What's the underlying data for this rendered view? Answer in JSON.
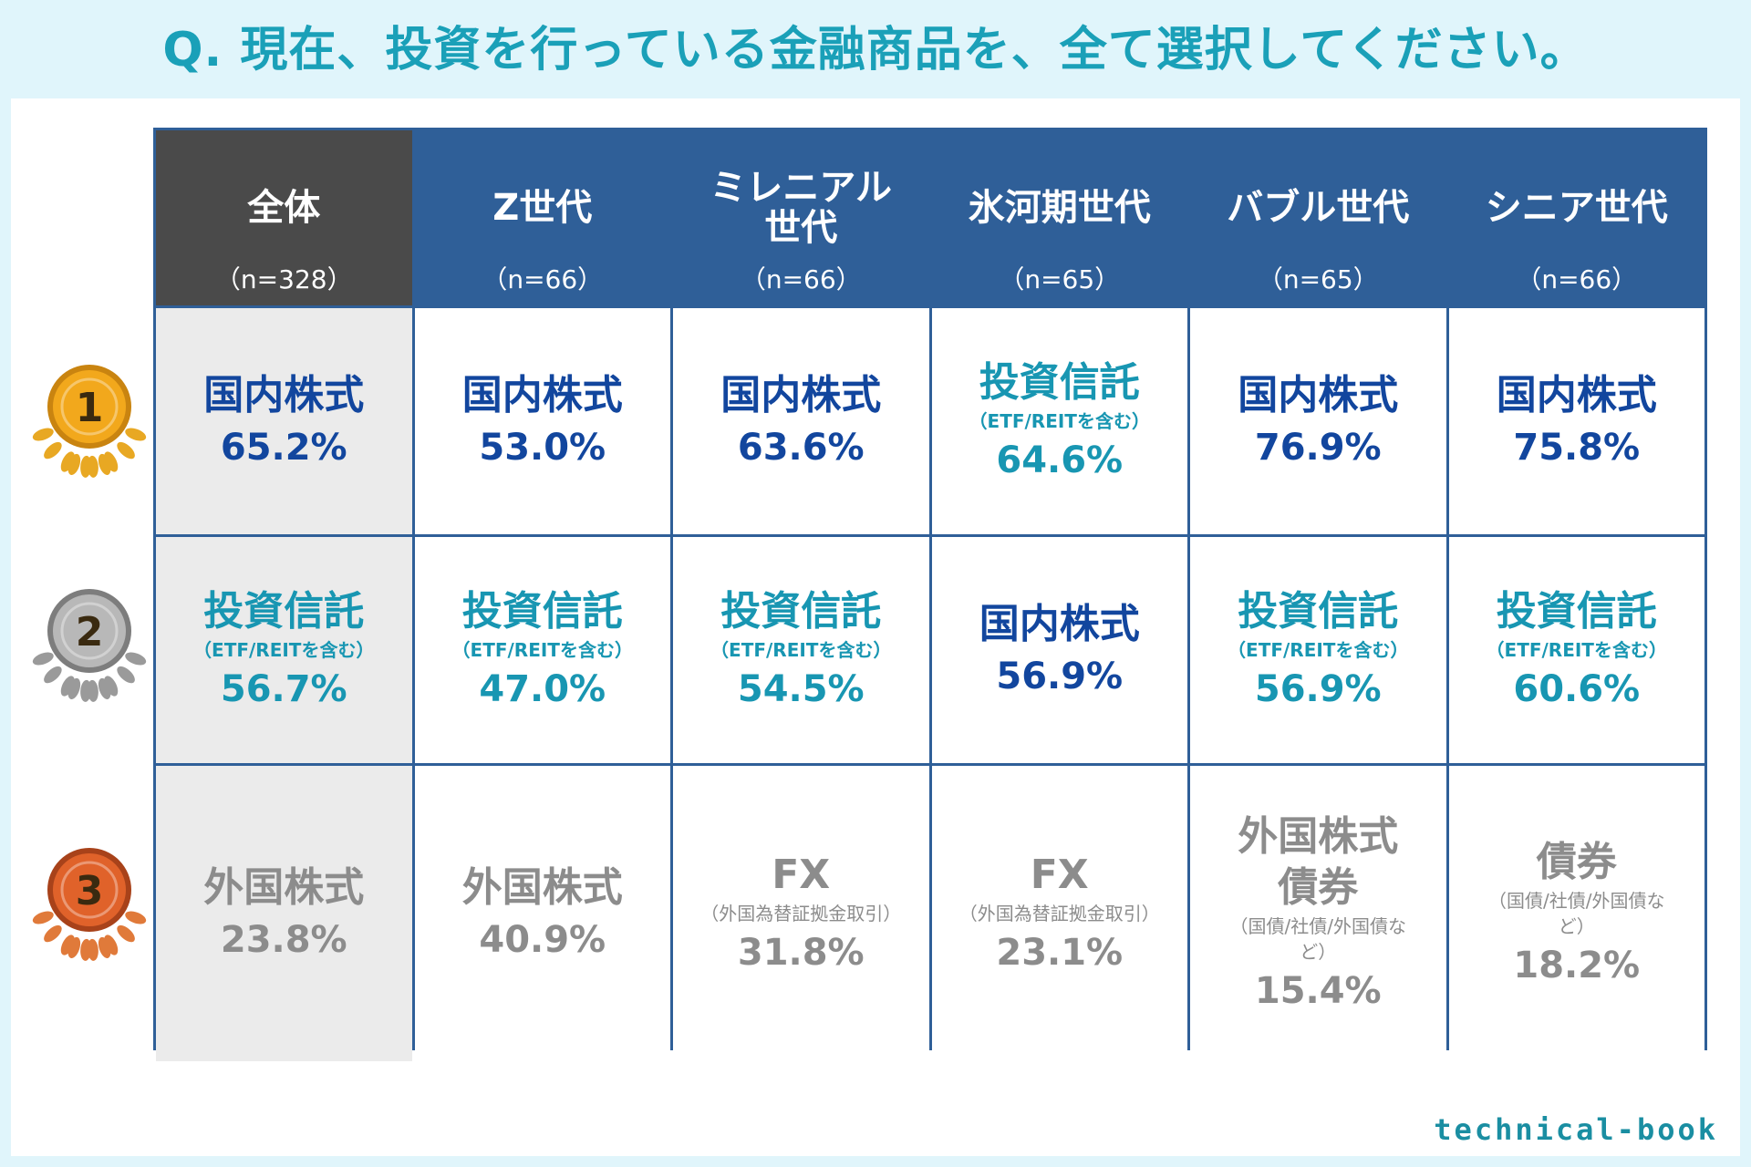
{
  "title": "Q. 現在、投資を行っている金融商品を、全て選択してください。",
  "headers": [
    {
      "name": "全体",
      "n": "（n=328）"
    },
    {
      "name": "Z世代",
      "n": "（n=66）"
    },
    {
      "name": "ミレニアル世代",
      "n": "（n=66）"
    },
    {
      "name": "氷河期世代",
      "n": "（n=65）"
    },
    {
      "name": "バブル世代",
      "n": "（n=65）"
    },
    {
      "name": "シニア世代",
      "n": "（n=66）"
    }
  ],
  "ranks": [
    {
      "medal": "1",
      "cells": [
        {
          "name": "国内株式",
          "sub": "",
          "pct": "65.2%",
          "tone": "blue"
        },
        {
          "name": "国内株式",
          "sub": "",
          "pct": "53.0%",
          "tone": "blue"
        },
        {
          "name": "国内株式",
          "sub": "",
          "pct": "63.6%",
          "tone": "blue"
        },
        {
          "name": "投資信託",
          "sub": "（ETF/REITを含む）",
          "pct": "64.6%",
          "tone": "teal"
        },
        {
          "name": "国内株式",
          "sub": "",
          "pct": "76.9%",
          "tone": "blue"
        },
        {
          "name": "国内株式",
          "sub": "",
          "pct": "75.8%",
          "tone": "blue"
        }
      ]
    },
    {
      "medal": "2",
      "cells": [
        {
          "name": "投資信託",
          "sub": "（ETF/REITを含む）",
          "pct": "56.7%",
          "tone": "teal"
        },
        {
          "name": "投資信託",
          "sub": "（ETF/REITを含む）",
          "pct": "47.0%",
          "tone": "teal"
        },
        {
          "name": "投資信託",
          "sub": "（ETF/REITを含む）",
          "pct": "54.5%",
          "tone": "teal"
        },
        {
          "name": "国内株式",
          "sub": "",
          "pct": "56.9%",
          "tone": "blue"
        },
        {
          "name": "投資信託",
          "sub": "（ETF/REITを含む）",
          "pct": "56.9%",
          "tone": "teal"
        },
        {
          "name": "投資信託",
          "sub": "（ETF/REITを含む）",
          "pct": "60.6%",
          "tone": "teal"
        }
      ]
    },
    {
      "medal": "3",
      "cells": [
        {
          "name": "外国株式",
          "sub": "",
          "pct": "23.8%",
          "tone": "gray"
        },
        {
          "name": "外国株式",
          "sub": "",
          "pct": "40.9%",
          "tone": "gray"
        },
        {
          "name": "FX",
          "sub": "（外国為替証拠金取引）",
          "pct": "31.8%",
          "tone": "gray"
        },
        {
          "name": "FX",
          "sub": "（外国為替証拠金取引）",
          "pct": "23.1%",
          "tone": "gray"
        },
        {
          "name": "外国株式\n債券",
          "sub": "（国債/社債/外国債など）",
          "pct": "15.4%",
          "tone": "gray"
        },
        {
          "name": "債券",
          "sub": "（国債/社債/外国債など）",
          "pct": "18.2%",
          "tone": "gray"
        }
      ]
    }
  ],
  "logo": "technical-book",
  "colors": {
    "header": "#2f5f98",
    "header_first": "#4a4a4a",
    "blue": "#12469e",
    "teal": "#1896b2",
    "gray": "#8c8c8c",
    "gold": "#f2a81c",
    "silver": "#9a9a9a",
    "bronze": "#e0622a"
  }
}
